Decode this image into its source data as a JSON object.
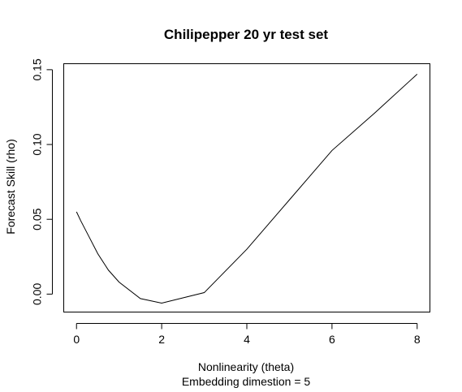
{
  "chart_data": {
    "type": "line",
    "title": "Chilipepper 20 yr test set",
    "xlabel": "Nonlinearity (theta)",
    "subtitle": "Embedding dimestion =  5",
    "ylabel": "Forecast Skill (rho)",
    "xlim": [
      -0.3,
      8.3
    ],
    "ylim": [
      -0.012,
      0.154
    ],
    "x_ticks": [
      0,
      2,
      4,
      6,
      8
    ],
    "x_tick_labels": [
      "0",
      "2",
      "4",
      "6",
      "8"
    ],
    "y_ticks": [
      0.0,
      0.05,
      0.1,
      0.15
    ],
    "y_tick_labels": [
      "0.00",
      "0.05",
      "0.10",
      "0.15"
    ],
    "grid": false,
    "legend": "none",
    "x": [
      0,
      0.1,
      0.3,
      0.5,
      0.75,
      1,
      1.5,
      2,
      3,
      4,
      5,
      6,
      7,
      8
    ],
    "y": [
      0.055,
      0.049,
      0.038,
      0.027,
      0.016,
      0.008,
      -0.003,
      -0.006,
      0.001,
      0.03,
      0.063,
      0.096,
      0.121,
      0.147
    ]
  }
}
